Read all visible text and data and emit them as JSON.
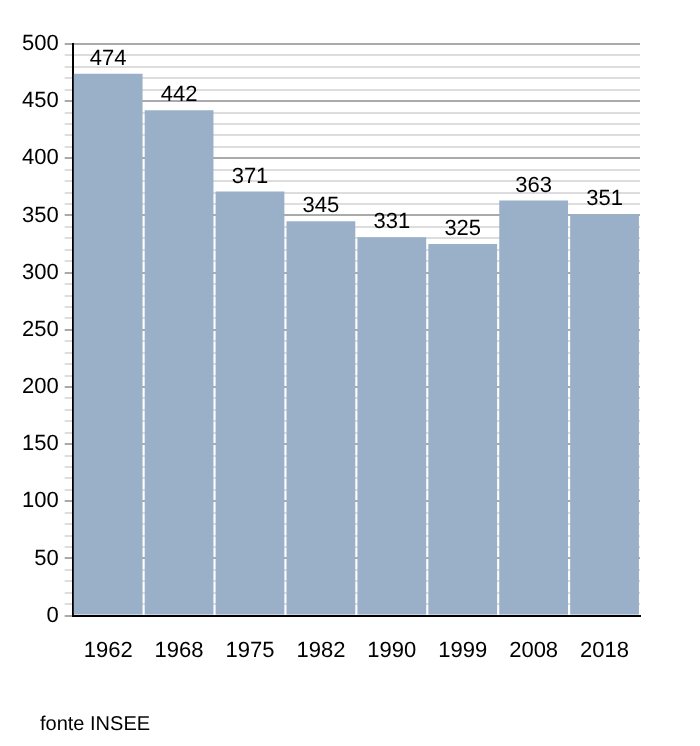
{
  "chart_data": {
    "type": "bar",
    "categories": [
      "1962",
      "1968",
      "1975",
      "1982",
      "1990",
      "1999",
      "2008",
      "2018"
    ],
    "values": [
      474,
      442,
      371,
      345,
      331,
      325,
      363,
      351
    ],
    "color": "#9ab0c9",
    "data_labels": true,
    "grid": "y",
    "legend": false,
    "ylim": [
      0,
      500
    ],
    "yticks": [
      0,
      {
        "value": 10,
        "label": null
      },
      {
        "value": 20,
        "label": null
      },
      {
        "value": 30,
        "label": null
      },
      {
        "value": 40,
        "label": null
      },
      50,
      {
        "value": 60,
        "label": null
      },
      {
        "value": 70,
        "label": null
      },
      {
        "value": 80,
        "label": null
      },
      {
        "value": 90,
        "label": null
      },
      100,
      {
        "value": 110,
        "label": null
      },
      {
        "value": 120,
        "label": null
      },
      {
        "value": 130,
        "label": null
      },
      {
        "value": 140,
        "label": null
      },
      150,
      {
        "value": 160,
        "label": null
      },
      {
        "value": 170,
        "label": null
      },
      {
        "value": 180,
        "label": null
      },
      {
        "value": 190,
        "label": null
      },
      200,
      {
        "value": 210,
        "label": null
      },
      {
        "value": 220,
        "label": null
      },
      {
        "value": 230,
        "label": null
      },
      {
        "value": 240,
        "label": null
      },
      250,
      {
        "value": 260,
        "label": null
      },
      {
        "value": 270,
        "label": null
      },
      {
        "value": 280,
        "label": null
      },
      {
        "value": 290,
        "label": null
      },
      300,
      {
        "value": 310,
        "label": null
      },
      {
        "value": 320,
        "label": null
      },
      {
        "value": 330,
        "label": null
      },
      {
        "value": 340,
        "label": null
      },
      350,
      {
        "value": 360,
        "label": null
      },
      {
        "value": 370,
        "label": null
      },
      {
        "value": 380,
        "label": null
      },
      {
        "value": 390,
        "label": null
      },
      400,
      {
        "value": 410,
        "label": null
      },
      {
        "value": 420,
        "label": null
      },
      {
        "value": 430,
        "label": null
      },
      {
        "value": 440,
        "label": null
      },
      450,
      {
        "value": 460,
        "label": null
      },
      {
        "value": 470,
        "label": null
      },
      {
        "value": 480,
        "label": null
      },
      {
        "value": 490,
        "label": null
      },
      500
    ],
    "annotations": [
      "fonte INSEE"
    ]
  }
}
